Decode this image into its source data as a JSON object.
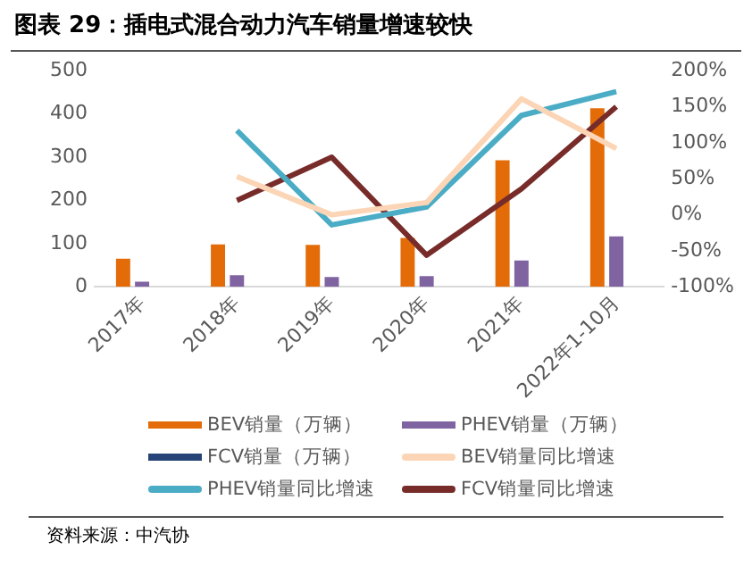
{
  "chart_data": {
    "type": "bar",
    "title": "图表 29：插电式混合动力汽车销量增速较快",
    "categories": [
      "2017年",
      "2018年",
      "2019年",
      "2020年",
      "2021年",
      "2022年1-10月"
    ],
    "series": [
      {
        "name": "BEV销量（万辆）",
        "color": "#e36c09",
        "values": [
          65,
          98,
          97,
          113,
          293,
          413
        ]
      },
      {
        "name": "PHEV销量（万辆）",
        "color": "#8064a2",
        "values": [
          12,
          27,
          23,
          25,
          61,
          117
        ]
      },
      {
        "name": "FCV销量（万辆）",
        "color": "#264478",
        "values": [
          null,
          null,
          null,
          null,
          null,
          null
        ]
      },
      {
        "name": "BEV销量同比增速",
        "type": "line",
        "axis": "y2",
        "color": "#fbd5b5",
        "values": [
          null,
          53,
          0,
          17,
          161,
          92
        ]
      },
      {
        "name": "PHEV销量同比增速",
        "type": "line",
        "axis": "y2",
        "color": "#4bacc6",
        "values": [
          null,
          117,
          -14,
          11,
          138,
          171
        ]
      },
      {
        "name": "FCV销量同比增速",
        "type": "line",
        "axis": "y2",
        "color": "#772c2a",
        "values": [
          null,
          20,
          80,
          -56,
          36,
          150
        ]
      }
    ],
    "ylim": [
      0,
      500
    ],
    "yticks": [
      0,
      100,
      200,
      300,
      400,
      500
    ],
    "y2lim": [
      -100,
      200
    ],
    "y2ticks": [
      {
        "value": -100,
        "label": "-100%"
      },
      {
        "value": -50,
        "label": "-50%"
      },
      {
        "value": 0,
        "label": "0%"
      },
      {
        "value": 50,
        "label": "50%"
      },
      {
        "value": 100,
        "label": "100%"
      },
      {
        "value": 150,
        "label": "150%"
      },
      {
        "value": 200,
        "label": "200%"
      }
    ],
    "legend": "bottom",
    "annotations": [
      "资料来源：中汽协"
    ]
  }
}
